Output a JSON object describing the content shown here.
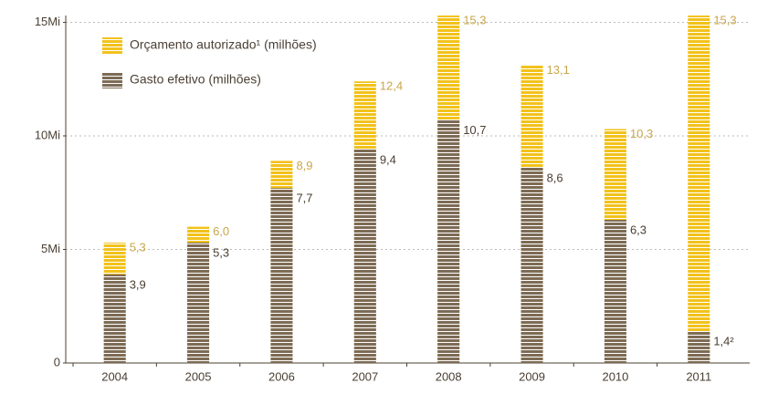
{
  "chart_data": {
    "type": "overlap-bar",
    "categories": [
      "2004",
      "2005",
      "2006",
      "2007",
      "2008",
      "2009",
      "2010",
      "2011"
    ],
    "series": [
      {
        "name": "Orçamento autorizado¹ (milhões)",
        "color": "#f2c21b",
        "values": [
          5.3,
          6.0,
          8.9,
          12.4,
          15.3,
          13.1,
          10.3,
          15.3
        ],
        "value_labels": [
          "5,3",
          "6,0",
          "8,9",
          "12,4",
          "15,3",
          "13,1",
          "10,3",
          "15,3"
        ],
        "label_color": "#c9a64a"
      },
      {
        "name": "Gasto efetivo (milhões)",
        "color": "#7d6b55",
        "values": [
          3.9,
          5.3,
          7.7,
          9.4,
          10.7,
          8.6,
          6.3,
          1.4
        ],
        "value_labels": [
          "3,9",
          "5,3",
          "7,7",
          "9,4",
          "10,7",
          "8,6",
          "6,3",
          "1,4²"
        ],
        "label_color": "#4a3f33"
      }
    ],
    "ylim": [
      0,
      15.3
    ],
    "yticks": [
      0,
      {
        "value": 5,
        "label": "5Mi"
      },
      {
        "value": 10,
        "label": "10Mi"
      },
      {
        "value": 15,
        "label": "15Mi"
      }
    ],
    "grid": true,
    "legend": "top-left"
  }
}
